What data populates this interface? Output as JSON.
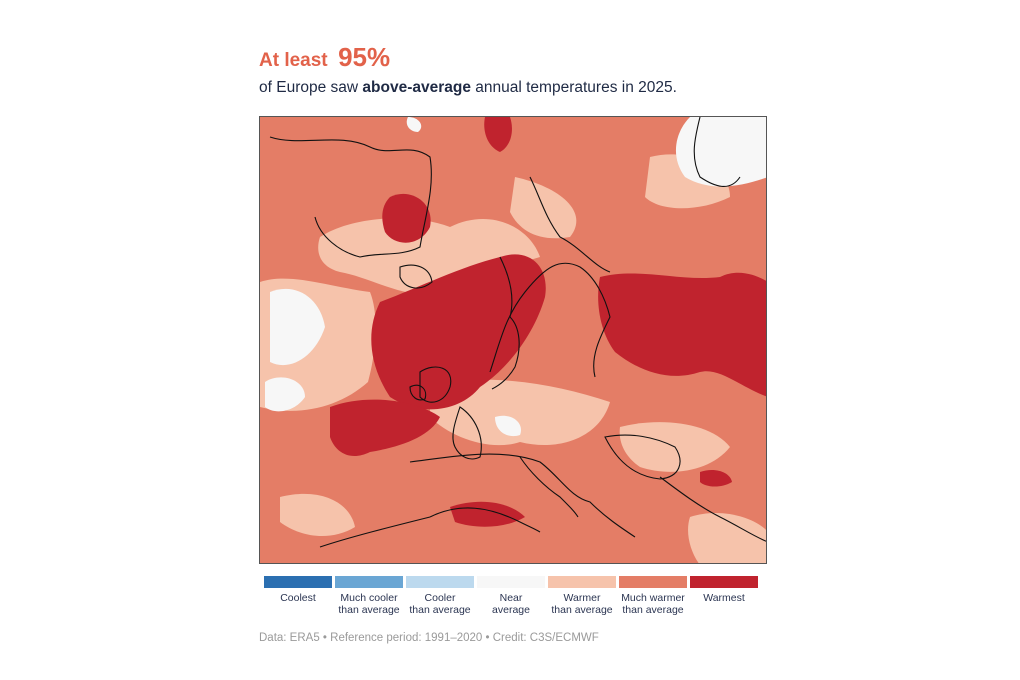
{
  "headline": {
    "lead": "At least",
    "value": "95%"
  },
  "subtitle": {
    "pre": "of Europe saw ",
    "bold": "above-average",
    "post": " annual temperatures in 2025."
  },
  "colors": {
    "coolest": "#2b6fb1",
    "much_cooler": "#6aa6d4",
    "cooler": "#bcd9ee",
    "near": "#f7f7f7",
    "warmer": "#f6c3ab",
    "much_warmer": "#e47d66",
    "warmest": "#c0232e"
  },
  "legend": [
    {
      "key": "coolest",
      "line1": "Coolest",
      "line2": ""
    },
    {
      "key": "much_cooler",
      "line1": "Much cooler",
      "line2": "than average"
    },
    {
      "key": "cooler",
      "line1": "Cooler",
      "line2": "than average"
    },
    {
      "key": "near",
      "line1": "Near",
      "line2": "average"
    },
    {
      "key": "warmer",
      "line1": "Warmer",
      "line2": "than average"
    },
    {
      "key": "much_warmer",
      "line1": "Much warmer",
      "line2": "than average"
    },
    {
      "key": "warmest",
      "line1": "Warmest",
      "line2": ""
    }
  ],
  "credit": "Data: ERA5 • Reference period: 1991–2020 • Credit: C3S/ECMWF"
}
